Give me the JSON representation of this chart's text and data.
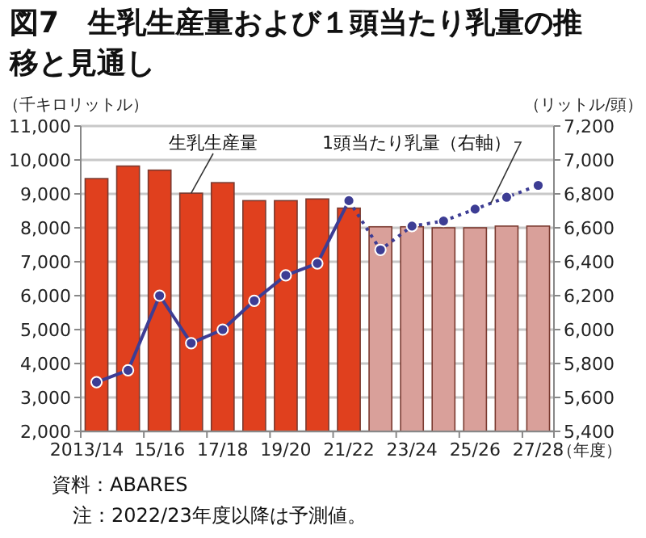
{
  "chart_data": {
    "type": "bar",
    "title": "図7　生乳生産量および１頭当たり乳量の推移と見通し",
    "categories": [
      "2013/14",
      null,
      "15/16",
      null,
      "17/18",
      null,
      "19/20",
      null,
      "21/22",
      null,
      "23/24",
      null,
      "25/26",
      null,
      "27/28"
    ],
    "series": [
      {
        "name": "生乳生産量",
        "colors": [
          "#e0401e",
          "#e0401e",
          "#e0401e",
          "#e0401e",
          "#e0401e",
          "#e0401e",
          "#e0401e",
          "#e0401e",
          "#e0401e",
          "#d9a09a",
          "#d9a09a",
          "#d9a09a",
          "#d9a09a",
          "#d9a09a",
          "#d9a09a"
        ],
        "values": [
          9450,
          9820,
          9700,
          9020,
          9330,
          8800,
          8800,
          8850,
          8580,
          8030,
          8030,
          8000,
          8000,
          8050,
          8050
        ]
      },
      {
        "type": "line",
        "axis": "y2",
        "color": "#3d3d94",
        "line_style": "solid",
        "marker": "circle",
        "values": [
          5690,
          5760,
          6200,
          5920,
          6000,
          6170,
          6320,
          6390,
          6760,
          null,
          null,
          null,
          null,
          null,
          null
        ]
      },
      {
        "name": "1頭当たり乳量（右軸）",
        "type": "line",
        "axis": "y2",
        "color": "#3d3d94",
        "line_style": "dotted",
        "marker": "circle",
        "values": [
          null,
          null,
          null,
          null,
          null,
          null,
          null,
          null,
          6760,
          6470,
          6610,
          6640,
          6710,
          6780,
          6850
        ]
      }
    ],
    "ylim": [
      2000,
      11000
    ],
    "yticks": [
      {
        "value": 2000,
        "label": "2,000"
      },
      {
        "value": 3000,
        "label": "3,000"
      },
      {
        "value": 4000,
        "label": "4,000"
      },
      {
        "value": 5000,
        "label": "5,000"
      },
      {
        "value": 6000,
        "label": "6,000"
      },
      {
        "value": 7000,
        "label": "7,000"
      },
      {
        "value": 8000,
        "label": "8,000"
      },
      {
        "value": 9000,
        "label": "9,000"
      },
      {
        "value": 10000,
        "label": "10,000"
      },
      {
        "value": 11000,
        "label": "11,000"
      }
    ],
    "y2lim": [
      5400,
      7200
    ],
    "y2ticks": [
      {
        "value": 5400,
        "label": "5,400"
      },
      {
        "value": 5600,
        "label": "5,600"
      },
      {
        "value": 5800,
        "label": "5,800"
      },
      {
        "value": 6000,
        "label": "6,000"
      },
      {
        "value": 6200,
        "label": "6,200"
      },
      {
        "value": 6400,
        "label": "6,400"
      },
      {
        "value": 6600,
        "label": "6,600"
      },
      {
        "value": 6800,
        "label": "6,800"
      },
      {
        "value": 7000,
        "label": "7,000"
      },
      {
        "value": 7200,
        "label": "7,200"
      }
    ],
    "ylabel": "（千キロリットル）",
    "y2label": "（リットル/頭）",
    "xlabel": "（年度）",
    "grid": "y",
    "annotations": [
      "資料：ABARES",
      "注：2022/23年度以降は予測値。"
    ]
  }
}
